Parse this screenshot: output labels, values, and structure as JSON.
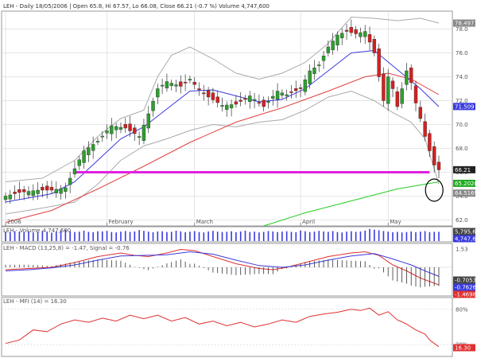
{
  "header": "LEH - Daily 18/05/2006 | Open 65.8, Hi 67.57, Lo 66.08, Close 66.21 (-0.7 %) Volume 4,747,600",
  "colors": {
    "up_candle": "#2e9e2e",
    "down_candle": "#d42020",
    "sma_short": "#3a3adf",
    "sma_medium": "#e04040",
    "sma_long": "#22cc22",
    "bollinger": "#aaaaaa",
    "support": "#e020e0",
    "volume": "#3a3adf",
    "macd": "#e03030",
    "signal": "#3a3adf",
    "mfi": "#e03030",
    "grid": "#cccccc"
  },
  "chart_data": [
    {
      "type": "candlestick",
      "name": "price",
      "ticker": "LEH",
      "interval": "Daily",
      "date": "18/05/2006",
      "ohlc_readout": {
        "open": 65.8,
        "high": 67.57,
        "low": 66.08,
        "close": 66.21,
        "change_pct": -0.7,
        "volume": "4,747,600"
      },
      "y_ticks": [
        62.0,
        64.0,
        66.0,
        68.0,
        70.0,
        72.0,
        74.0,
        76.0,
        78.0
      ],
      "ylim": [
        61.5,
        79.5
      ],
      "month_ticks": [
        {
          "label": "2006",
          "index": 0
        },
        {
          "label": "February",
          "index": 22
        },
        {
          "label": "March",
          "index": 41
        },
        {
          "label": "April",
          "index": 64
        },
        {
          "label": "May",
          "index": 83
        }
      ],
      "last_labels": [
        {
          "text": "78.4971",
          "value": 78.4971,
          "color": "#888888"
        },
        {
          "text": "71.509",
          "value": 71.509,
          "color": "#3a3adf"
        },
        {
          "text": "66.21",
          "value": 66.21,
          "color": "#222222"
        },
        {
          "text": "65.2026",
          "value": 65.2026,
          "color": "#22aa22"
        },
        {
          "text": "64.5169",
          "value": 64.5169,
          "color": "#888888"
        }
      ],
      "support_level": 66.0,
      "highlight_circle": {
        "index": 93,
        "value": 64.5
      },
      "trend": [
        [
          0,
          64.0
        ],
        [
          3,
          64.3
        ],
        [
          7,
          64.5
        ],
        [
          10,
          64.5
        ],
        [
          13,
          64.7
        ],
        [
          15,
          66.3
        ],
        [
          17,
          67.8
        ],
        [
          20,
          68.6
        ],
        [
          23,
          69.9
        ],
        [
          26,
          69.7
        ],
        [
          29,
          69.0
        ],
        [
          31,
          70.9
        ],
        [
          33,
          73.0
        ],
        [
          35,
          73.6
        ],
        [
          38,
          73.2
        ],
        [
          40,
          73.8
        ],
        [
          42,
          72.9
        ],
        [
          44,
          72.3
        ],
        [
          47,
          71.6
        ],
        [
          50,
          71.7
        ],
        [
          53,
          72.4
        ],
        [
          56,
          71.5
        ],
        [
          59,
          72.8
        ],
        [
          61,
          72.5
        ],
        [
          64,
          73.0
        ],
        [
          66,
          74.5
        ],
        [
          68,
          75.0
        ],
        [
          70,
          76.5
        ],
        [
          72,
          77.5
        ],
        [
          74,
          77.8
        ],
        [
          76,
          77.6
        ],
        [
          78,
          77.8
        ],
        [
          80,
          76.0
        ],
        [
          81,
          74.0
        ],
        [
          82,
          72.0
        ],
        [
          83,
          74.0
        ],
        [
          84,
          73.0
        ],
        [
          85,
          71.5
        ],
        [
          87,
          74.5
        ],
        [
          88,
          73.5
        ],
        [
          89,
          71.8
        ],
        [
          90,
          70.5
        ],
        [
          91,
          69.0
        ],
        [
          92,
          67.8
        ],
        [
          93,
          66.6
        ],
        [
          94,
          66.2
        ]
      ],
      "sma_short": [
        [
          0,
          63.5
        ],
        [
          10,
          64.2
        ],
        [
          15,
          65.2
        ],
        [
          20,
          67.0
        ],
        [
          25,
          68.8
        ],
        [
          30,
          69.8
        ],
        [
          35,
          71.3
        ],
        [
          40,
          72.8
        ],
        [
          45,
          72.9
        ],
        [
          50,
          72.4
        ],
        [
          55,
          71.9
        ],
        [
          60,
          72.1
        ],
        [
          65,
          73.0
        ],
        [
          70,
          74.5
        ],
        [
          75,
          76.0
        ],
        [
          80,
          76.2
        ],
        [
          85,
          74.6
        ],
        [
          90,
          73.0
        ],
        [
          94,
          71.5
        ]
      ],
      "sma_medium": [
        [
          0,
          61.8
        ],
        [
          10,
          62.8
        ],
        [
          20,
          64.6
        ],
        [
          30,
          66.5
        ],
        [
          40,
          68.5
        ],
        [
          50,
          70.2
        ],
        [
          60,
          71.4
        ],
        [
          70,
          72.8
        ],
        [
          78,
          74.0
        ],
        [
          83,
          74.3
        ],
        [
          88,
          73.8
        ],
        [
          94,
          72.5
        ]
      ],
      "sma_long": [
        [
          56,
          61.5
        ],
        [
          65,
          62.6
        ],
        [
          75,
          63.6
        ],
        [
          85,
          64.6
        ],
        [
          94,
          65.2
        ]
      ],
      "bollinger_upper": [
        [
          0,
          65.2
        ],
        [
          8,
          65.5
        ],
        [
          15,
          67.0
        ],
        [
          20,
          69.0
        ],
        [
          25,
          70.5
        ],
        [
          30,
          71.2
        ],
        [
          33,
          74.0
        ],
        [
          36,
          75.8
        ],
        [
          40,
          76.5
        ],
        [
          45,
          75.5
        ],
        [
          50,
          74.3
        ],
        [
          55,
          73.8
        ],
        [
          60,
          74.3
        ],
        [
          65,
          75.2
        ],
        [
          70,
          76.8
        ],
        [
          75,
          79.0
        ],
        [
          80,
          78.9
        ],
        [
          85,
          78.7
        ],
        [
          90,
          78.9
        ],
        [
          94,
          78.5
        ]
      ],
      "bollinger_lower": [
        [
          0,
          62.5
        ],
        [
          8,
          63.0
        ],
        [
          15,
          63.5
        ],
        [
          20,
          65.0
        ],
        [
          25,
          67.0
        ],
        [
          30,
          68.2
        ],
        [
          35,
          68.8
        ],
        [
          40,
          69.5
        ],
        [
          45,
          70.0
        ],
        [
          50,
          69.8
        ],
        [
          55,
          70.2
        ],
        [
          60,
          70.4
        ],
        [
          65,
          71.2
        ],
        [
          70,
          72.3
        ],
        [
          75,
          72.8
        ],
        [
          80,
          72.0
        ],
        [
          84,
          71.0
        ],
        [
          88,
          70.2
        ],
        [
          91,
          68.8
        ],
        [
          94,
          65.0
        ]
      ]
    },
    {
      "type": "bar",
      "name": "volume",
      "label": "LEH - Volume",
      "value_label": "4,747,600",
      "last_labels": [
        {
          "text": "5,795,663",
          "color": "#444444"
        },
        {
          "text": "4,747,600",
          "color": "#3a3adf"
        }
      ],
      "values_millions": [
        4.8,
        4.5,
        5.1,
        4.9,
        4.6,
        5.0,
        4.4,
        4.7,
        5.2,
        4.8,
        4.3,
        4.9,
        5.5,
        5.8,
        5.1,
        4.6,
        4.8,
        5.3,
        4.7,
        4.5,
        5.0,
        4.9,
        5.2,
        4.6,
        4.4,
        4.8,
        5.1,
        4.7,
        4.9,
        5.6,
        5.2,
        4.8,
        4.5,
        4.9,
        5.0,
        4.6,
        4.7,
        5.3,
        4.9,
        4.5,
        4.8,
        5.1,
        4.6,
        4.4,
        4.9,
        5.2,
        4.8,
        4.6,
        4.7,
        5.0,
        4.5,
        4.9,
        5.3,
        4.6,
        4.8,
        4.4,
        4.7,
        5.1,
        4.9,
        4.6,
        4.8,
        5.0,
        4.7,
        4.5,
        5.4,
        5.0,
        4.6,
        4.8,
        5.2,
        4.9,
        4.7,
        5.1,
        4.6,
        4.4,
        4.8,
        5.0,
        4.7,
        4.9,
        5.3,
        6.2,
        5.8,
        5.5,
        5.1,
        4.8,
        4.5,
        4.7,
        4.4,
        4.6,
        4.9,
        4.5,
        4.8,
        5.1,
        4.6,
        4.7,
        4.7
      ],
      "ylim": [
        0,
        6.5
      ]
    },
    {
      "type": "line",
      "name": "macd",
      "label": "LEH - MACD (13,25,8) = -1.47, Signal = -0.76",
      "y_ticks": [
        1.53
      ],
      "ylim": [
        -2.4,
        2.0
      ],
      "last_labels": [
        {
          "text": "-0.705391",
          "color": "#444444"
        },
        {
          "text": "-0.762684",
          "color": "#3a3adf"
        },
        {
          "text": "-1.46988",
          "color": "#e03030"
        }
      ],
      "series": [
        {
          "name": "MACD",
          "points": [
            [
              0,
              -0.2
            ],
            [
              5,
              -0.1
            ],
            [
              10,
              0.0
            ],
            [
              15,
              0.4
            ],
            [
              20,
              0.9
            ],
            [
              25,
              1.2
            ],
            [
              28,
              1.0
            ],
            [
              31,
              0.9
            ],
            [
              35,
              1.2
            ],
            [
              38,
              1.5
            ],
            [
              41,
              1.4
            ],
            [
              45,
              0.9
            ],
            [
              50,
              0.3
            ],
            [
              55,
              -0.1
            ],
            [
              58,
              -0.2
            ],
            [
              61,
              0.0
            ],
            [
              65,
              0.4
            ],
            [
              70,
              0.9
            ],
            [
              75,
              1.2
            ],
            [
              78,
              1.3
            ],
            [
              81,
              1.0
            ],
            [
              84,
              0.2
            ],
            [
              87,
              -0.3
            ],
            [
              90,
              -0.9
            ],
            [
              94,
              -1.47
            ]
          ]
        },
        {
          "name": "Signal",
          "points": [
            [
              0,
              -0.3
            ],
            [
              5,
              -0.2
            ],
            [
              10,
              -0.05
            ],
            [
              15,
              0.2
            ],
            [
              20,
              0.6
            ],
            [
              25,
              0.95
            ],
            [
              30,
              1.0
            ],
            [
              35,
              1.05
            ],
            [
              40,
              1.3
            ],
            [
              45,
              1.1
            ],
            [
              50,
              0.6
            ],
            [
              55,
              0.15
            ],
            [
              60,
              0.0
            ],
            [
              65,
              0.2
            ],
            [
              70,
              0.6
            ],
            [
              75,
              0.95
            ],
            [
              80,
              1.15
            ],
            [
              84,
              0.7
            ],
            [
              88,
              0.2
            ],
            [
              91,
              -0.3
            ],
            [
              94,
              -0.76
            ]
          ]
        }
      ]
    },
    {
      "type": "line",
      "name": "mfi",
      "label": "LEH - MFI (14) = 16.30",
      "y_ticks": [
        {
          "text": "80%",
          "value": 80
        },
        {
          "text": "20%",
          "value": 20
        }
      ],
      "ylim": [
        0,
        100
      ],
      "last_labels": [
        {
          "text": "16.30",
          "color": "#e03030"
        }
      ],
      "series": [
        {
          "name": "MFI",
          "points": [
            [
              0,
              22
            ],
            [
              3,
              28
            ],
            [
              6,
              45
            ],
            [
              9,
              42
            ],
            [
              12,
              55
            ],
            [
              15,
              62
            ],
            [
              18,
              58
            ],
            [
              21,
              65
            ],
            [
              24,
              60
            ],
            [
              27,
              70
            ],
            [
              30,
              64
            ],
            [
              33,
              70
            ],
            [
              36,
              60
            ],
            [
              39,
              66
            ],
            [
              42,
              55
            ],
            [
              45,
              60
            ],
            [
              48,
              52
            ],
            [
              51,
              58
            ],
            [
              54,
              50
            ],
            [
              57,
              55
            ],
            [
              60,
              62
            ],
            [
              63,
              58
            ],
            [
              66,
              68
            ],
            [
              69,
              72
            ],
            [
              72,
              75
            ],
            [
              75,
              80
            ],
            [
              77,
              78
            ],
            [
              79,
              82
            ],
            [
              81,
              70
            ],
            [
              83,
              76
            ],
            [
              85,
              62
            ],
            [
              87,
              55
            ],
            [
              89,
              45
            ],
            [
              91,
              38
            ],
            [
              92,
              28
            ],
            [
              93,
              22
            ],
            [
              94,
              16.3
            ]
          ]
        }
      ]
    }
  ]
}
